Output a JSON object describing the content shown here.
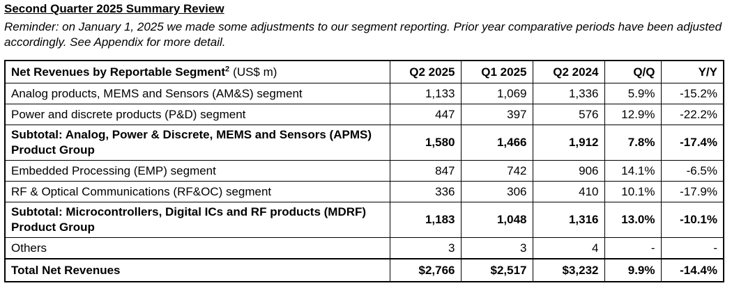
{
  "header": {
    "title": "Second Quarter 2025 Summary Review",
    "note": "Reminder: on January 1, 2025 we made some adjustments to our segment reporting. Prior year comparative periods have been adjusted accordingly. See Appendix for more detail."
  },
  "table": {
    "columns": [
      {
        "label": "Net Revenues by Reportable Segment",
        "superscript": "2",
        "unit": "(US$ m)"
      },
      "Q2 2025",
      "Q1 2025",
      "Q2 2024",
      "Q/Q",
      "Y/Y"
    ],
    "rows": [
      [
        "Analog products, MEMS and Sensors (AM&S) segment",
        "1,133",
        "1,069",
        "1,336",
        "5.9%",
        "-15.2%"
      ],
      [
        "Power and discrete products (P&D) segment",
        "447",
        "397",
        "576",
        "12.9%",
        "-22.2%"
      ],
      [
        "Subtotal: Analog, Power & Discrete, MEMS and Sensors (APMS) Product Group",
        "1,580",
        "1,466",
        "1,912",
        "7.8%",
        "-17.4%"
      ],
      [
        "Embedded Processing (EMP) segment",
        "847",
        "742",
        "906",
        "14.1%",
        "-6.5%"
      ],
      [
        "RF & Optical Communications (RF&OC) segment",
        "336",
        "306",
        "410",
        "10.1%",
        "-17.9%"
      ],
      [
        "Subtotal: Microcontrollers, Digital ICs and RF products (MDRF) Product Group",
        "1,183",
        "1,048",
        "1,316",
        "13.0%",
        "-10.1%"
      ],
      [
        "Others",
        "3",
        "3",
        "4",
        "-",
        "-"
      ],
      [
        "Total Net Revenues",
        "$2,766",
        "$2,517",
        "$3,232",
        "9.9%",
        "-14.4%"
      ]
    ]
  }
}
